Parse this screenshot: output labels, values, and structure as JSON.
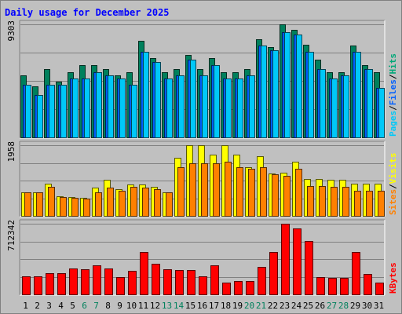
{
  "chart_data": {
    "type": "bar",
    "title": "Daily usage for December 2025",
    "days": [
      "1",
      "2",
      "3",
      "4",
      "5",
      "6",
      "7",
      "8",
      "9",
      "10",
      "11",
      "12",
      "13",
      "14",
      "15",
      "16",
      "17",
      "18",
      "19",
      "20",
      "21",
      "22",
      "23",
      "24",
      "25",
      "26",
      "27",
      "28",
      "29",
      "30",
      "31"
    ],
    "weekend_days": [
      "6",
      "7",
      "13",
      "14",
      "20",
      "21",
      "27",
      "28"
    ],
    "day_label_color": "#000000",
    "weekend_label_color": "#00805c",
    "panels": [
      {
        "name": "hits-files-pages",
        "ymax_label": "9303",
        "ymax": 9303,
        "legend": [
          "Pages",
          "/",
          "Files",
          "/",
          "Hits"
        ],
        "legend_colors": [
          "#00c8f8",
          "#000000",
          "#0060ff",
          "#000000",
          "#00a878"
        ],
        "series": [
          {
            "name": "Hits",
            "color": "#00805c",
            "values": [
              5100,
              4200,
              5650,
              4600,
              5350,
              5950,
              5950,
              5650,
              5100,
              5350,
              7950,
              6500,
              5350,
              5600,
              6800,
              5600,
              6500,
              5350,
              5350,
              5650,
              8100,
              7450,
              9303,
              8850,
              7650,
              6400,
              5350,
              5350,
              7550,
              5950,
              5350
            ]
          },
          {
            "name": "Files",
            "color": "#0060ff",
            "values": [
              4300,
              3500,
              4300,
              4300,
              4850,
              4850,
              5350,
              5100,
              4850,
              4300,
              7050,
              6200,
              4850,
              5100,
              6400,
              5100,
              5950,
              4850,
              4850,
              5100,
              7550,
              7200,
              8650,
              8450,
              7050,
              5600,
              4850,
              5100,
              7050,
              5600,
              4050
            ]
          },
          {
            "name": "Pages",
            "color": "#00c8f8",
            "values": [
              4300,
              3500,
              4300,
              4300,
              4850,
              4850,
              5350,
              5100,
              4850,
              4300,
              7050,
              6200,
              4850,
              5100,
              6400,
              5100,
              5950,
              4850,
              4850,
              5100,
              7550,
              7200,
              8650,
              8450,
              7050,
              5600,
              4850,
              5100,
              7050,
              5600,
              4050
            ]
          }
        ]
      },
      {
        "name": "visits-sites",
        "ymax_label": "1958",
        "ymax": 1958,
        "legend": [
          "Sites",
          "/",
          "Visits"
        ],
        "legend_colors": [
          "#ff8000",
          "#000000",
          "#ffff00"
        ],
        "series": [
          {
            "name": "Visits",
            "color": "#ffff00",
            "values": [
              650,
              650,
              900,
              550,
              520,
              500,
              780,
              1000,
              740,
              860,
              860,
              800,
              650,
              1620,
              1958,
              1958,
              1700,
              1958,
              1700,
              1350,
              1650,
              1180,
              1200,
              1500,
              1030,
              1030,
              1000,
              1000,
              900,
              900,
              900
            ]
          },
          {
            "name": "Sites",
            "color": "#ff8000",
            "values": [
              650,
              650,
              800,
              520,
              500,
              480,
              650,
              780,
              700,
              800,
              780,
              740,
              650,
              1350,
              1450,
              1450,
              1450,
              1500,
              1350,
              1300,
              1350,
              1150,
              1100,
              1300,
              820,
              820,
              800,
              800,
              700,
              700,
              700
            ]
          }
        ]
      },
      {
        "name": "kbytes",
        "ymax_label": "712342",
        "ymax": 712342,
        "legend": [
          "KBytes"
        ],
        "legend_colors": [
          "#ff0000"
        ],
        "series": [
          {
            "name": "KBytes",
            "color": "#ff0000",
            "values": [
              185000,
              180000,
              215000,
              215000,
              265000,
              255000,
              295000,
              265000,
              175000,
              235000,
              430000,
              305000,
              255000,
              245000,
              245000,
              185000,
              295000,
              115000,
              135000,
              135000,
              280000,
              430000,
              712342,
              665000,
              540000,
              175000,
              165000,
              170000,
              425000,
              205000,
              115000
            ]
          }
        ]
      }
    ]
  }
}
